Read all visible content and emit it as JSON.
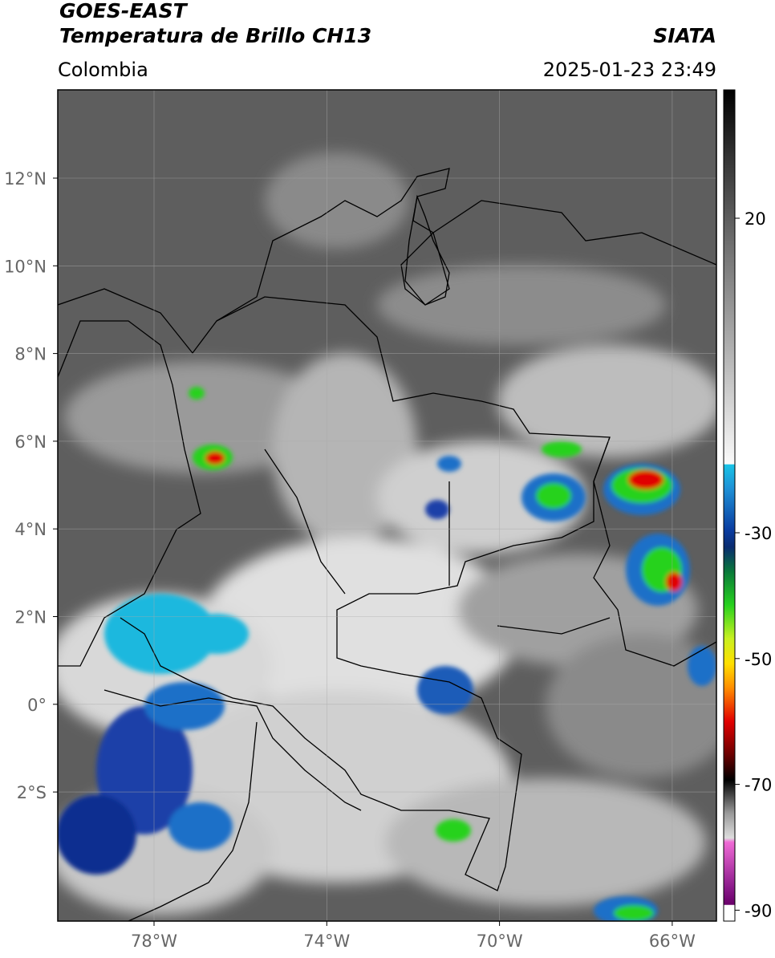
{
  "header": {
    "satellite": "GOES-EAST",
    "product": "Temperatura de Brillo CH13",
    "region": "Colombia",
    "source": "SIATA",
    "datetime": "2025-01-23 23:49"
  },
  "map": {
    "longitude_ticks": [
      "78°W",
      "74°W",
      "70°W",
      "66°W"
    ],
    "latitude_ticks": [
      "12°N",
      "10°N",
      "8°N",
      "6°N",
      "4°N",
      "2°N",
      "0°",
      "2°S"
    ]
  },
  "colorbar": {
    "ticks": [
      20,
      -30,
      -50,
      -70,
      -90
    ]
  }
}
